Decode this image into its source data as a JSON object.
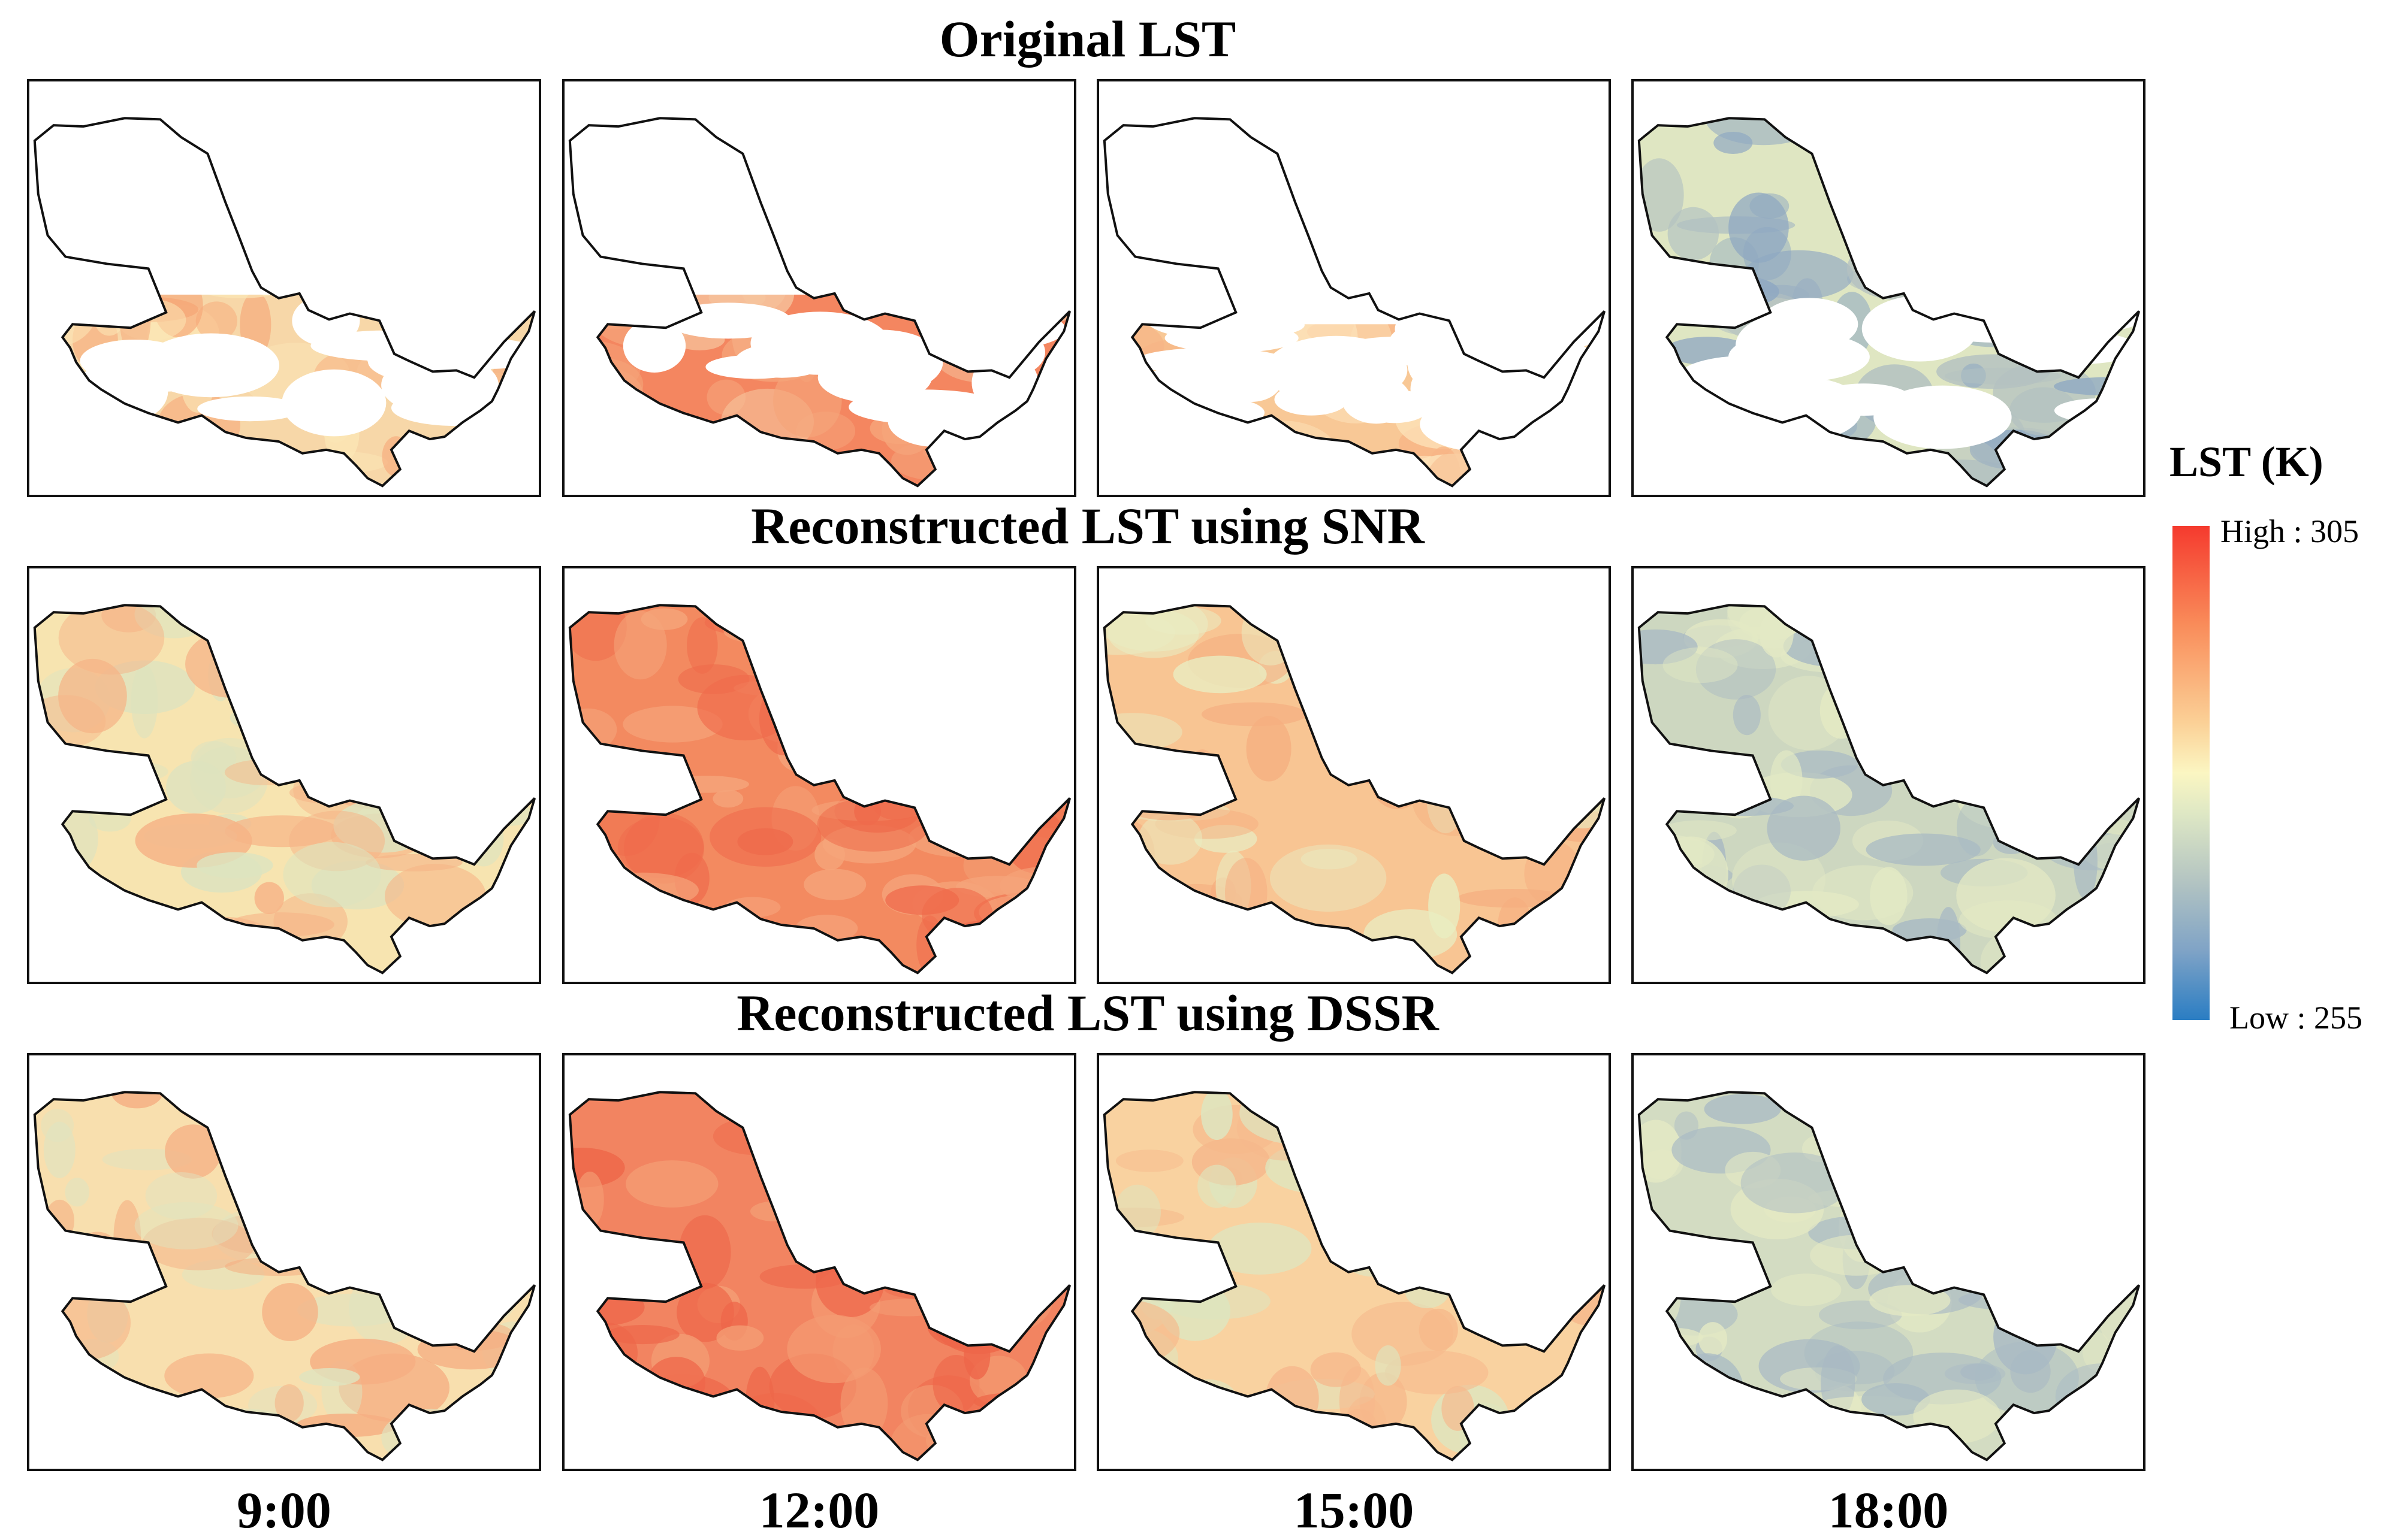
{
  "rows": [
    {
      "title": "Original LST",
      "maps": [
        {
          "palette": [
            "#f7d7a8",
            "#f6a778",
            "#fbe6b5"
          ],
          "gaps": true,
          "coverage": "south"
        },
        {
          "palette": [
            "#f48660",
            "#f5a47a",
            "#f6c6a0"
          ],
          "gaps": true,
          "coverage": "south"
        },
        {
          "palette": [
            "#f8c896",
            "#f7b586",
            "#fde2b9"
          ],
          "gaps": true,
          "coverage": "south-sparse"
        },
        {
          "palette": [
            "#dfe6c2",
            "#b3c1c1",
            "#8fa8c2"
          ],
          "gaps": true,
          "coverage": "mostly"
        }
      ]
    },
    {
      "title": "Reconstructed LST using SNR",
      "maps": [
        {
          "palette": [
            "#f7e4b0",
            "#f6b487",
            "#dde3bf"
          ],
          "gaps": false
        },
        {
          "palette": [
            "#f38a60",
            "#ef6a4b",
            "#f5a47a"
          ],
          "gaps": false
        },
        {
          "palette": [
            "#f8c593",
            "#f5ae80",
            "#e9edc2"
          ],
          "gaps": false
        },
        {
          "palette": [
            "#cdd7c0",
            "#a8b9c3",
            "#e3e9c4"
          ],
          "gaps": false
        }
      ]
    },
    {
      "title": "Reconstructed LST using DSSR",
      "maps": [
        {
          "palette": [
            "#f8dfae",
            "#f5ae82",
            "#dfe4c0"
          ],
          "gaps": false
        },
        {
          "palette": [
            "#f28461",
            "#ee6649",
            "#f49d74"
          ],
          "gaps": false
        },
        {
          "palette": [
            "#f9d2a0",
            "#f6b88b",
            "#dde6c0"
          ],
          "gaps": false
        },
        {
          "palette": [
            "#d3dcc2",
            "#a9bac4",
            "#e4e9c4"
          ],
          "gaps": false
        }
      ]
    }
  ],
  "time_labels": [
    "9:00",
    "12:00",
    "15:00",
    "18:00"
  ],
  "legend": {
    "title": "LST (K)",
    "high": "High : 305",
    "low": "Low : 255",
    "high_color": "#f53a2e",
    "low_color": "#2a7dc3"
  }
}
